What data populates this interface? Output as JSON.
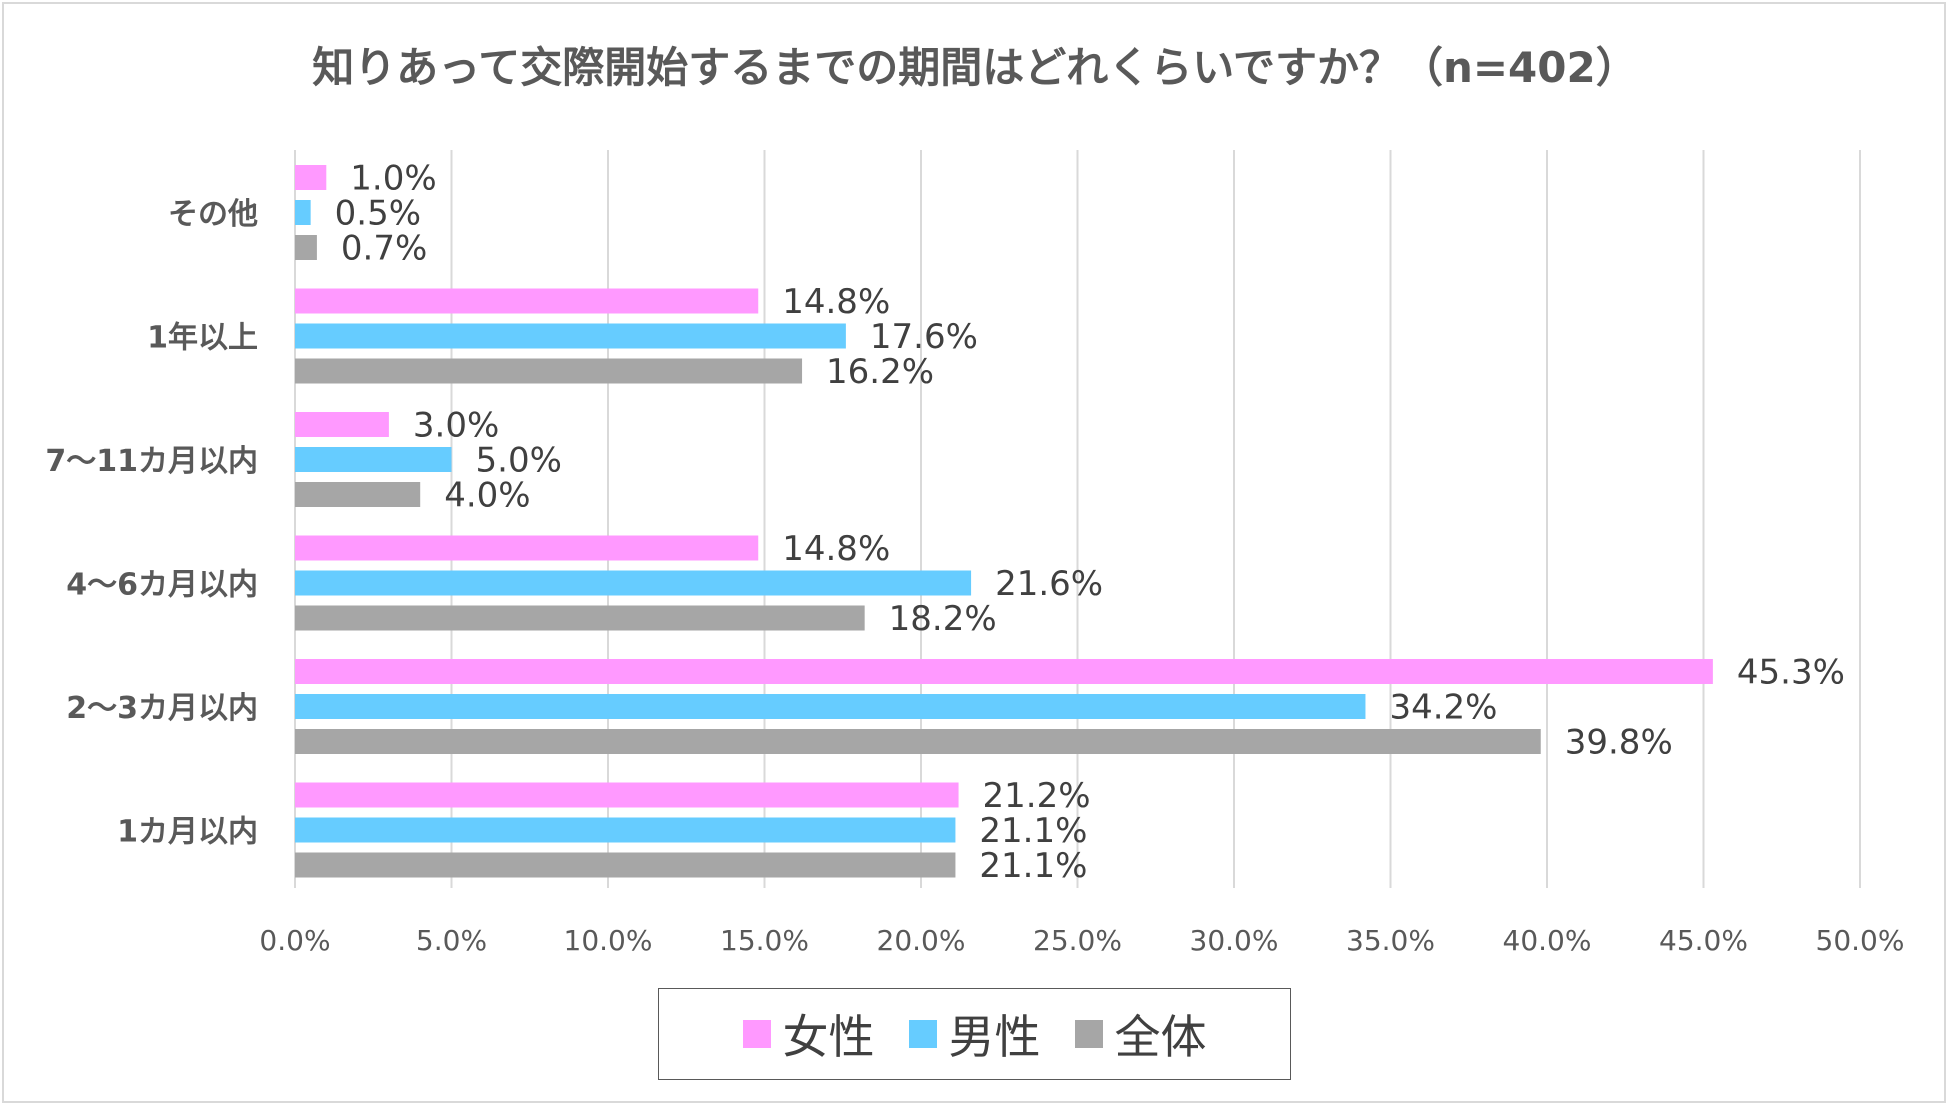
{
  "chart_data": {
    "type": "bar",
    "orientation": "horizontal",
    "title": "知りあって交際開始するまでの期間はどれくらいですか？（n=402）",
    "categories": [
      "その他",
      "1年以上",
      "7～11カ月以内",
      "4～6カ月以内",
      "2～3カ月以内",
      "1カ月以内"
    ],
    "series": [
      {
        "name": "女性",
        "color": "#ff99ff",
        "values": [
          1.0,
          14.8,
          3.0,
          14.8,
          45.3,
          21.2
        ],
        "labels": [
          "1.0%",
          "14.8%",
          "3.0%",
          "14.8%",
          "45.3%",
          "21.2%"
        ]
      },
      {
        "name": "男性",
        "color": "#66ccff",
        "values": [
          0.5,
          17.6,
          5.0,
          21.6,
          34.2,
          21.1
        ],
        "labels": [
          "0.5%",
          "17.6%",
          "5.0%",
          "21.6%",
          "34.2%",
          "21.1%"
        ]
      },
      {
        "name": "全体",
        "color": "#a6a6a6",
        "values": [
          0.7,
          16.2,
          4.0,
          18.2,
          39.8,
          21.1
        ],
        "labels": [
          "0.7%",
          "16.2%",
          "4.0%",
          "18.2%",
          "39.8%",
          "21.1%"
        ]
      }
    ],
    "xlim": [
      0,
      50
    ],
    "x_ticks": [
      0,
      5,
      10,
      15,
      20,
      25,
      30,
      35,
      40,
      45,
      50
    ],
    "x_tick_labels": [
      "0.0%",
      "5.0%",
      "10.0%",
      "15.0%",
      "20.0%",
      "25.0%",
      "30.0%",
      "35.0%",
      "40.0%",
      "45.0%",
      "50.0%"
    ],
    "grid": true,
    "legend_position": "bottom"
  }
}
